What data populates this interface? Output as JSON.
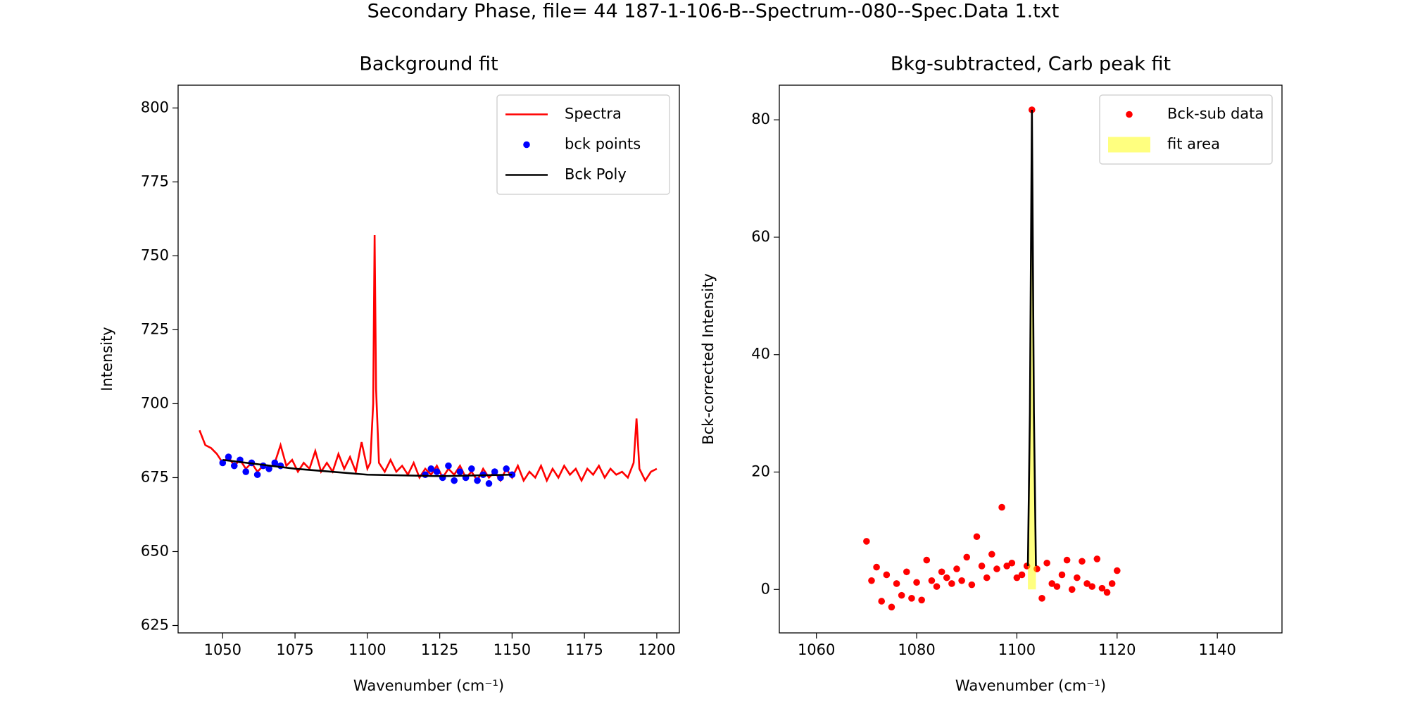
{
  "title": "Secondary Phase, file= 44 187-1-106-B--Spectrum--080--Spec.Data 1.txt",
  "chart_data": [
    {
      "type": "line",
      "title": "Background fit",
      "x_label": "Wavenumber (cm⁻¹)",
      "y_label": "Intensity",
      "xlim": [
        1034.6,
        1207.8
      ],
      "ylim": [
        622.5,
        807.7
      ],
      "xticks": [
        1050,
        1075,
        1100,
        1125,
        1150,
        1175,
        1200
      ],
      "yticks": [
        625,
        650,
        675,
        700,
        725,
        750,
        775,
        800
      ],
      "legend": "upper right",
      "series": [
        {
          "name": "Spectra",
          "type": "line",
          "color": "#ff0000",
          "x": [
            1042,
            1044,
            1046,
            1048,
            1050,
            1052,
            1054,
            1056,
            1058,
            1060,
            1062,
            1064,
            1066,
            1068,
            1070,
            1072,
            1074,
            1076,
            1078,
            1080,
            1082,
            1084,
            1086,
            1088,
            1090,
            1092,
            1094,
            1096,
            1098,
            1100,
            1101,
            1102,
            1102.5,
            1103,
            1104,
            1106,
            1108,
            1110,
            1112,
            1114,
            1116,
            1118,
            1120,
            1122,
            1124,
            1126,
            1128,
            1130,
            1132,
            1134,
            1136,
            1138,
            1140,
            1142,
            1144,
            1146,
            1148,
            1150,
            1152,
            1154,
            1156,
            1158,
            1160,
            1162,
            1164,
            1166,
            1168,
            1170,
            1172,
            1174,
            1176,
            1178,
            1180,
            1182,
            1184,
            1186,
            1188,
            1190,
            1192,
            1193,
            1194,
            1196,
            1198,
            1200
          ],
          "values": [
            691,
            686,
            685,
            683,
            680,
            682,
            679,
            681,
            678,
            680,
            677,
            679,
            678,
            680,
            686,
            679,
            681,
            677,
            680,
            678,
            684,
            677,
            680,
            677,
            683,
            678,
            682,
            677,
            687,
            678,
            680,
            700,
            757,
            705,
            680,
            677,
            681,
            677,
            679,
            676,
            680,
            675,
            678,
            676,
            679,
            675,
            678,
            676,
            679,
            675,
            677,
            674,
            678,
            675,
            677,
            674,
            678,
            675,
            679,
            674,
            677,
            675,
            679,
            674,
            678,
            675,
            679,
            676,
            678,
            674,
            678,
            676,
            679,
            675,
            678,
            676,
            677,
            675,
            680,
            695,
            678,
            674,
            677,
            678
          ]
        },
        {
          "name": "bck points",
          "type": "scatter",
          "color": "#0000ff",
          "x": [
            1050,
            1052,
            1054,
            1056,
            1058,
            1060,
            1062,
            1064,
            1066,
            1068,
            1070,
            1120,
            1122,
            1124,
            1126,
            1128,
            1130,
            1132,
            1134,
            1136,
            1138,
            1140,
            1142,
            1144,
            1146,
            1148,
            1150
          ],
          "values": [
            680,
            682,
            679,
            681,
            677,
            680,
            676,
            679,
            678,
            680,
            679,
            676,
            678,
            677,
            675,
            679,
            674,
            677,
            675,
            678,
            674,
            676,
            673,
            677,
            675,
            678,
            676
          ]
        },
        {
          "name": "Bck Poly",
          "type": "line",
          "color": "#000000",
          "x": [
            1050,
            1075,
            1100,
            1125,
            1150
          ],
          "values": [
            681,
            678,
            676,
            675.5,
            676
          ]
        }
      ]
    },
    {
      "type": "line",
      "title": "Bkg-subtracted, Carb peak fit",
      "x_label": "Wavenumber (cm⁻¹)",
      "y_label": "Bck-corrected Intensity",
      "xlim": [
        1052.6,
        1152.9
      ],
      "ylim": [
        -7.4,
        85.9
      ],
      "xticks": [
        1060,
        1080,
        1100,
        1120,
        1140
      ],
      "yticks": [
        0,
        20,
        40,
        60,
        80
      ],
      "legend": "upper right",
      "series": [
        {
          "name": "Bck-sub data",
          "type": "scatter",
          "color": "#ff0000",
          "x": [
            1070,
            1071,
            1072,
            1073,
            1074,
            1075,
            1076,
            1077,
            1078,
            1079,
            1080,
            1081,
            1082,
            1083,
            1084,
            1085,
            1086,
            1087,
            1088,
            1089,
            1090,
            1091,
            1092,
            1093,
            1094,
            1095,
            1096,
            1097,
            1098,
            1099,
            1100,
            1101,
            1102,
            1103,
            1104,
            1105,
            1106,
            1107,
            1108,
            1109,
            1110,
            1111,
            1112,
            1113,
            1114,
            1115,
            1116,
            1117,
            1118,
            1119,
            1120
          ],
          "values": [
            8.2,
            1.5,
            3.8,
            -2,
            2.5,
            -3,
            1,
            -1,
            3,
            -1.5,
            1.2,
            -1.8,
            5,
            1.5,
            0.5,
            3,
            2,
            1,
            3.5,
            1.5,
            5.5,
            0.8,
            9,
            4,
            2,
            6,
            3.5,
            14,
            4,
            4.5,
            2,
            2.5,
            4,
            81.7,
            3.5,
            -1.5,
            4.5,
            1,
            0.5,
            2.5,
            5,
            0,
            2,
            4.8,
            1,
            0.5,
            5.2,
            0.2,
            -0.5,
            1,
            3.2
          ]
        },
        {
          "name": "fit area",
          "type": "fill",
          "color": "#ffff00",
          "x": [
            1102.2,
            1102.6,
            1103,
            1103.4,
            1103.8
          ],
          "values": [
            4,
            30,
            81.7,
            30,
            4
          ]
        },
        {
          "type": "line",
          "color": "#000000",
          "x": [
            1102.2,
            1102.6,
            1103,
            1103.4,
            1103.8
          ],
          "values": [
            4,
            30,
            81.7,
            30,
            4
          ]
        }
      ]
    }
  ]
}
